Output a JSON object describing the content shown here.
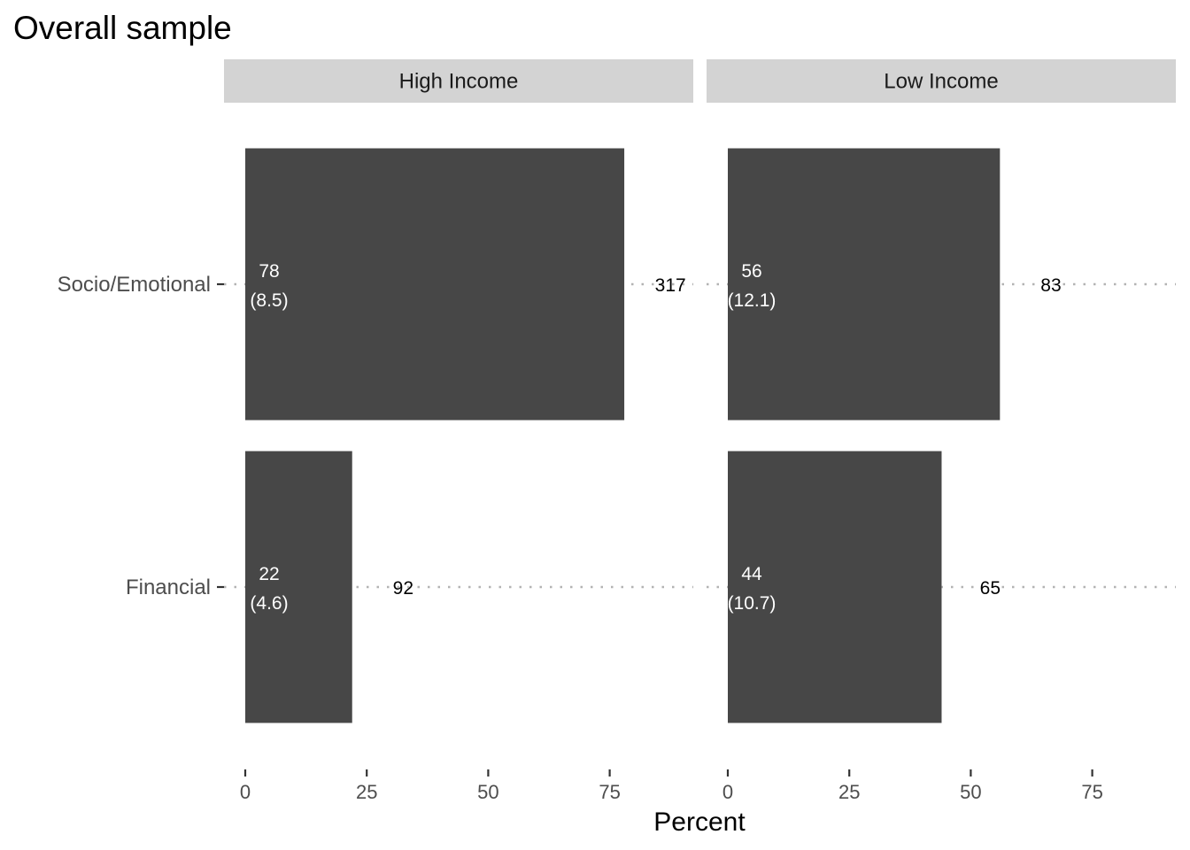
{
  "chart_data": {
    "type": "bar",
    "orientation": "horizontal",
    "title": "Overall sample",
    "xlabel": "Percent",
    "ylabel": "",
    "xlim": [
      0,
      92
    ],
    "x_ticks": [
      0,
      25,
      50,
      75
    ],
    "grid": false,
    "categories": [
      "Socio/Emotional",
      "Financial"
    ],
    "panels": [
      {
        "name": "High Income",
        "bars": [
          {
            "category": "Socio/Emotional",
            "value": 78,
            "label_main": "78",
            "label_sub": "(8.5)",
            "count": "317",
            "count_x": 87.5
          },
          {
            "category": "Financial",
            "value": 22,
            "label_main": "22",
            "label_sub": "(4.6)",
            "count": "92",
            "count_x": 32.5
          }
        ]
      },
      {
        "name": "Low Income",
        "bars": [
          {
            "category": "Socio/Emotional",
            "value": 56,
            "label_main": "56",
            "label_sub": "(12.1)",
            "count": "83",
            "count_x": 66.5
          },
          {
            "category": "Financial",
            "value": 44,
            "label_main": "44",
            "label_sub": "(10.7)",
            "count": "65",
            "count_x": 54
          }
        ]
      }
    ],
    "colors": {
      "bar": "#474747",
      "strip": "#d3d3d3",
      "dotted_line": "#b3b3b3"
    }
  }
}
